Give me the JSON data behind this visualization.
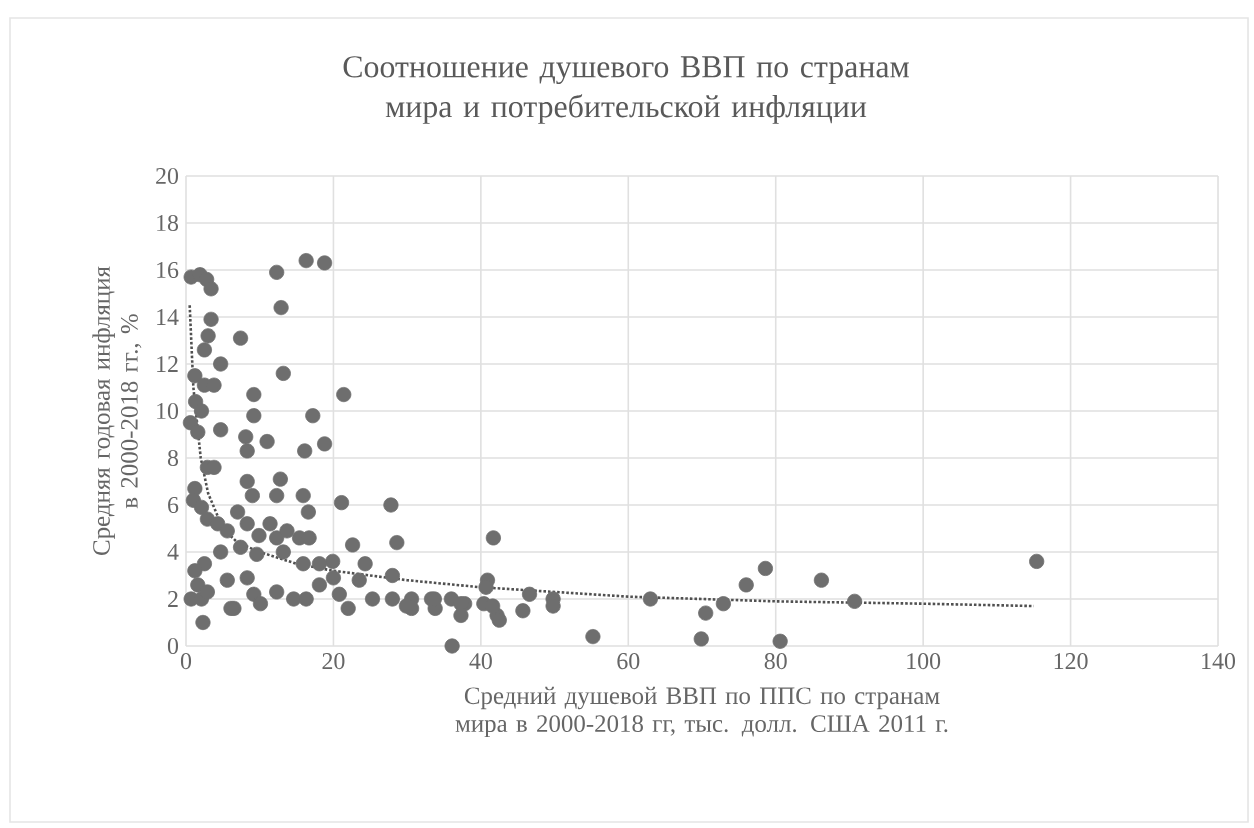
{
  "chart_data": {
    "type": "scatter",
    "title": "Соотношение душевого ВВП по странам мира и потребительской инфляции",
    "xlabel": "Средний душевой ВВП  по ППС по странам мира в 2000-2018 гг, тыс. долл. США 2011 г.",
    "ylabel": "Средняя годовая инфляция в 2000-2018 гг., %",
    "xlim": [
      0,
      140
    ],
    "xticks": [
      0,
      20,
      40,
      60,
      80,
      100,
      120,
      140
    ],
    "ylim": [
      0,
      20
    ],
    "yticks": [
      0,
      2,
      4,
      6,
      8,
      10,
      12,
      14,
      16,
      18,
      20
    ],
    "grid": true,
    "series": [
      {
        "color": "#6e6e6e",
        "marker": "circle",
        "x": [
          0.7,
          1.9,
          2.8,
          3.4,
          3.4,
          3.0,
          2.5,
          4.7,
          7.4,
          12.3,
          12.9,
          16.3,
          18.8,
          13.2,
          1.2,
          2.5,
          3.8,
          1.3,
          2.1,
          0.6,
          1.6,
          4.7,
          9.2,
          9.2,
          8.1,
          8.3,
          11,
          17.2,
          18.8,
          16.1,
          21.4,
          21.1,
          12.8,
          12.3,
          15.9,
          16.6,
          8.3,
          9.0,
          2.9,
          3.8,
          1.2,
          1.0,
          2.1,
          2.9,
          4.3,
          5.6,
          7.0,
          8.3,
          9.9,
          11.4,
          12.3,
          13.7,
          15.4,
          16.7,
          22.6,
          27.8,
          28.6,
          24.3,
          19.9,
          18.1,
          15.9,
          13.2,
          9.6,
          7.4,
          4.7,
          2.5,
          1.2,
          1.6,
          0.7,
          2.1,
          2.9,
          5.6,
          8.3,
          6.5,
          9.2,
          10.1,
          12.3,
          14.6,
          16.3,
          18.1,
          20.0,
          20.8,
          22,
          25.3,
          28,
          28,
          30.6,
          33.3,
          36,
          37.8,
          40.4,
          42.2,
          40.9,
          2.3,
          6.1,
          23.5,
          33.8,
          30.6,
          29.9,
          33.7,
          37.3,
          37.3,
          40.7,
          42.5,
          45.7,
          46.6,
          49.8,
          49.8,
          41.6,
          36.1,
          41.7,
          55.2,
          63,
          69.9,
          70.5,
          72.9,
          76,
          78.6,
          80.6,
          86.2,
          90.7,
          115.4
        ],
        "values": [
          15.7,
          15.8,
          15.6,
          15.2,
          13.9,
          13.2,
          12.6,
          12.0,
          13.1,
          15.9,
          14.4,
          16.4,
          16.3,
          11.6,
          11.5,
          11.1,
          11.1,
          10.4,
          10.0,
          9.5,
          9.1,
          9.2,
          10.7,
          9.8,
          8.9,
          8.3,
          8.7,
          9.8,
          8.6,
          8.3,
          10.7,
          6.1,
          7.1,
          6.4,
          6.4,
          5.7,
          7.0,
          6.4,
          7.6,
          7.6,
          6.7,
          6.2,
          5.9,
          5.4,
          5.2,
          4.9,
          5.7,
          5.2,
          4.7,
          5.2,
          4.6,
          4.9,
          4.6,
          4.6,
          4.3,
          6.0,
          4.4,
          3.5,
          3.6,
          3.5,
          3.5,
          4.0,
          3.9,
          4.2,
          4.0,
          3.5,
          3.2,
          2.6,
          2.0,
          2.0,
          2.3,
          2.8,
          2.9,
          1.6,
          2.2,
          1.8,
          2.3,
          2.0,
          2.0,
          2.6,
          2.9,
          2.2,
          1.6,
          2.0,
          3.0,
          2.0,
          2.0,
          2.0,
          2.0,
          1.8,
          1.8,
          1.3,
          2.8,
          1.0,
          1.6,
          2.8,
          1.6,
          1.6,
          1.7,
          2.0,
          1.8,
          1.3,
          2.5,
          1.1,
          1.5,
          2.2,
          2.0,
          1.7,
          1.7,
          0,
          4.6,
          0.4,
          2.0,
          0.3,
          1.4,
          1.8,
          2.6,
          3.3,
          0.2,
          2.8,
          1.9,
          3.6
        ]
      },
      {
        "type": "line",
        "color": "#505050",
        "line_style": "dotted",
        "marker": "none",
        "x": [
          0.5,
          1,
          2,
          3,
          5,
          7,
          10,
          15,
          20,
          30,
          40,
          60,
          80,
          100,
          115
        ],
        "values": [
          14.5,
          11,
          8,
          6.5,
          5,
          4.4,
          4,
          3.5,
          3.2,
          2.8,
          2.5,
          2.1,
          1.9,
          1.8,
          1.7
        ]
      }
    ]
  }
}
